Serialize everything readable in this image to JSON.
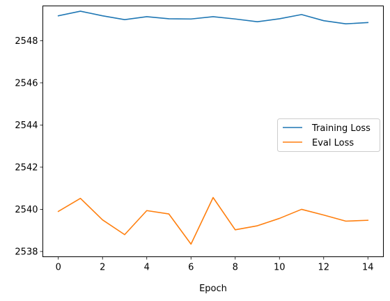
{
  "chart_data": {
    "type": "line",
    "title": "",
    "xlabel": "Epoch",
    "ylabel": "",
    "x": [
      0,
      1,
      2,
      3,
      4,
      5,
      6,
      7,
      8,
      9,
      10,
      11,
      12,
      13,
      14
    ],
    "xlim": [
      -0.7,
      14.7
    ],
    "ylim": [
      2537.75,
      2549.65
    ],
    "xticks": [
      0,
      2,
      4,
      6,
      8,
      10,
      12,
      14
    ],
    "yticks": [
      2538,
      2540,
      2542,
      2544,
      2546,
      2548
    ],
    "xtick_labels": [
      "0",
      "2",
      "4",
      "6",
      "8",
      "10",
      "12",
      "14"
    ],
    "ytick_labels": [
      "2538",
      "2540",
      "2542",
      "2544",
      "2546",
      "2548"
    ],
    "grid": false,
    "legend": "center-right",
    "series": [
      {
        "name": "Training Loss",
        "color": "#1f77b4",
        "values": [
          2549.18,
          2549.4,
          2549.18,
          2549.0,
          2549.14,
          2549.04,
          2549.03,
          2549.14,
          2549.03,
          2548.9,
          2549.04,
          2549.24,
          2548.95,
          2548.8,
          2548.86
        ]
      },
      {
        "name": "Eval Loss",
        "color": "#ff7f0e",
        "values": [
          2539.9,
          2540.52,
          2539.5,
          2538.8,
          2539.94,
          2539.78,
          2538.35,
          2540.56,
          2539.03,
          2539.22,
          2539.57,
          2540.0,
          2539.73,
          2539.44,
          2539.48
        ]
      }
    ]
  }
}
